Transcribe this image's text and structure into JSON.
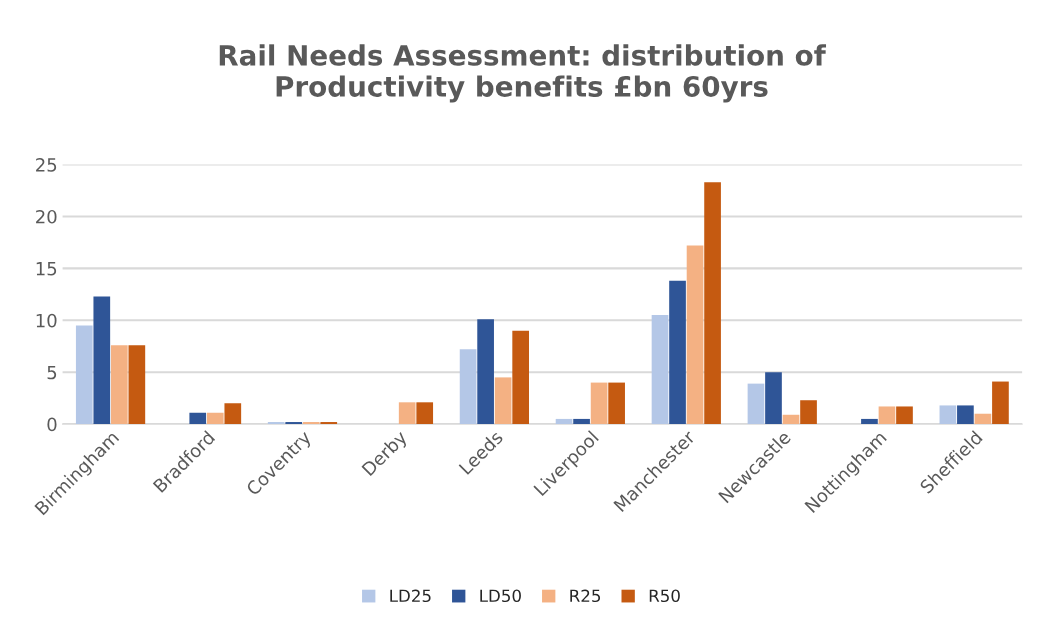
{
  "chart_data": {
    "type": "bar",
    "title": "Rail Needs Assessment: distribution of\nProductivity benefits £bn 60yrs",
    "categories": [
      "Birmingham",
      "Bradford",
      "Coventry",
      "Derby",
      "Leeds",
      "Liverpool",
      "Manchester",
      "Newcastle",
      "Nottingham",
      "Sheffield"
    ],
    "series": [
      {
        "name": "LD25",
        "color": "#b4c7e7",
        "values": [
          9.5,
          null,
          0.2,
          null,
          7.2,
          0.5,
          10.5,
          3.9,
          null,
          1.8
        ]
      },
      {
        "name": "LD50",
        "color": "#2f5597",
        "values": [
          12.3,
          1.1,
          0.2,
          null,
          10.1,
          0.5,
          13.8,
          5.0,
          0.5,
          1.8
        ]
      },
      {
        "name": "R25",
        "color": "#f4b183",
        "values": [
          7.6,
          1.1,
          0.2,
          2.1,
          4.5,
          4.0,
          17.2,
          0.9,
          1.7,
          1.0
        ]
      },
      {
        "name": "R50",
        "color": "#c55a11",
        "values": [
          7.6,
          2.0,
          0.2,
          2.1,
          9.0,
          4.0,
          23.3,
          2.3,
          1.7,
          4.1
        ]
      }
    ],
    "ylim": [
      0,
      25
    ],
    "yticks": [
      0,
      5,
      10,
      15,
      20,
      25
    ],
    "grid": "y",
    "legend": "bottom"
  }
}
